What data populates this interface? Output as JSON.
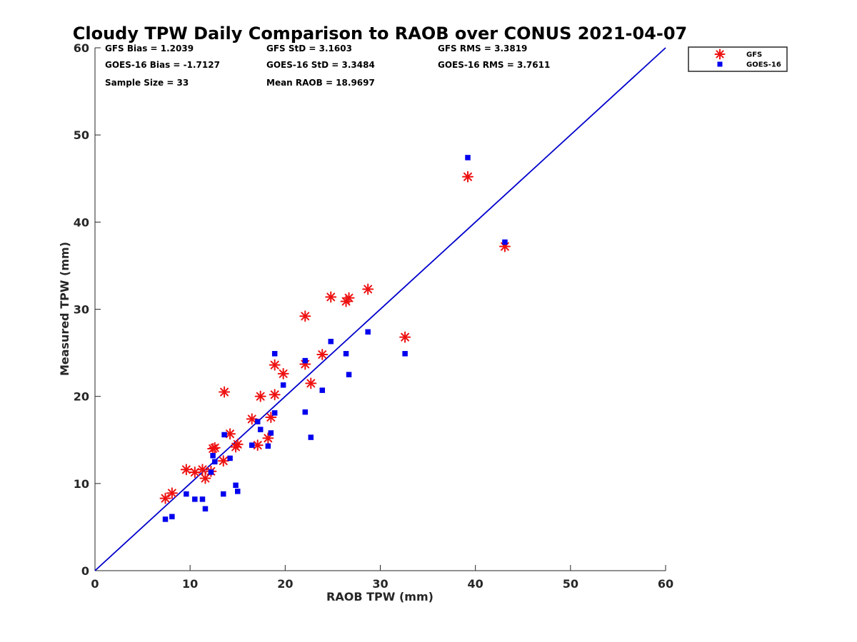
{
  "chart_data": {
    "type": "scatter",
    "title": "Cloudy TPW Daily Comparison to RAOB over CONUS 2021-04-07",
    "xlabel": "RAOB TPW (mm)",
    "ylabel": "Measured TPW (mm)",
    "xlim": [
      0,
      60
    ],
    "ylim": [
      0,
      60
    ],
    "xticks": [
      "0",
      "10",
      "20",
      "30",
      "40",
      "50",
      "60"
    ],
    "yticks": [
      "0",
      "10",
      "20",
      "30",
      "40",
      "50",
      "60"
    ],
    "grid": false,
    "legend_position": "top-right",
    "reference_line": {
      "from": [
        0,
        0
      ],
      "to": [
        60,
        60
      ],
      "color": "#0000cc"
    },
    "stats": [
      [
        "GFS Bias = 1.2039",
        "GFS StD = 3.1603",
        "GFS RMS = 3.3819"
      ],
      [
        "GOES-16 Bias = -1.7127",
        "GOES-16 StD = 3.3484",
        "GOES-16 RMS = 3.7611"
      ],
      [
        "Sample Size = 33",
        "Mean RAOB = 18.9697",
        ""
      ]
    ],
    "series": [
      {
        "name": "GFS",
        "marker": "asterisk",
        "color": "#ee1111",
        "points": [
          [
            7.4,
            8.3
          ],
          [
            8.1,
            8.9
          ],
          [
            9.6,
            11.6
          ],
          [
            10.5,
            11.3
          ],
          [
            11.3,
            11.6
          ],
          [
            11.6,
            10.6
          ],
          [
            12.2,
            11.4
          ],
          [
            12.4,
            14.0
          ],
          [
            12.6,
            14.1
          ],
          [
            13.5,
            12.6
          ],
          [
            13.6,
            20.5
          ],
          [
            14.2,
            15.7
          ],
          [
            14.8,
            14.2
          ],
          [
            15.0,
            14.5
          ],
          [
            16.5,
            17.4
          ],
          [
            17.1,
            14.4
          ],
          [
            17.4,
            20.0
          ],
          [
            18.2,
            15.2
          ],
          [
            18.5,
            17.6
          ],
          [
            18.9,
            20.2
          ],
          [
            18.9,
            23.6
          ],
          [
            19.8,
            22.6
          ],
          [
            22.1,
            29.2
          ],
          [
            22.1,
            23.7
          ],
          [
            22.7,
            21.5
          ],
          [
            23.9,
            24.8
          ],
          [
            24.8,
            31.4
          ],
          [
            26.4,
            30.9
          ],
          [
            26.7,
            31.3
          ],
          [
            28.7,
            32.3
          ],
          [
            32.6,
            26.8
          ],
          [
            39.2,
            45.2
          ],
          [
            43.1,
            37.2
          ]
        ]
      },
      {
        "name": "GOES-16",
        "marker": "square",
        "color": "#0000ee",
        "points": [
          [
            7.4,
            5.9
          ],
          [
            8.1,
            6.2
          ],
          [
            9.6,
            8.8
          ],
          [
            10.5,
            8.2
          ],
          [
            11.3,
            8.2
          ],
          [
            11.6,
            7.1
          ],
          [
            12.2,
            11.3
          ],
          [
            12.4,
            13.2
          ],
          [
            12.6,
            12.5
          ],
          [
            13.5,
            8.8
          ],
          [
            13.6,
            15.6
          ],
          [
            14.2,
            12.9
          ],
          [
            14.8,
            9.8
          ],
          [
            15.0,
            9.1
          ],
          [
            16.5,
            14.4
          ],
          [
            17.1,
            17.1
          ],
          [
            17.4,
            16.2
          ],
          [
            18.2,
            14.3
          ],
          [
            18.5,
            15.8
          ],
          [
            18.9,
            18.1
          ],
          [
            18.9,
            24.9
          ],
          [
            19.8,
            21.3
          ],
          [
            22.1,
            24.1
          ],
          [
            22.1,
            18.2
          ],
          [
            22.7,
            15.3
          ],
          [
            23.9,
            20.7
          ],
          [
            24.8,
            26.3
          ],
          [
            26.4,
            24.9
          ],
          [
            26.7,
            22.5
          ],
          [
            28.7,
            27.4
          ],
          [
            32.6,
            24.9
          ],
          [
            39.2,
            47.4
          ],
          [
            43.1,
            37.7
          ]
        ]
      }
    ]
  }
}
